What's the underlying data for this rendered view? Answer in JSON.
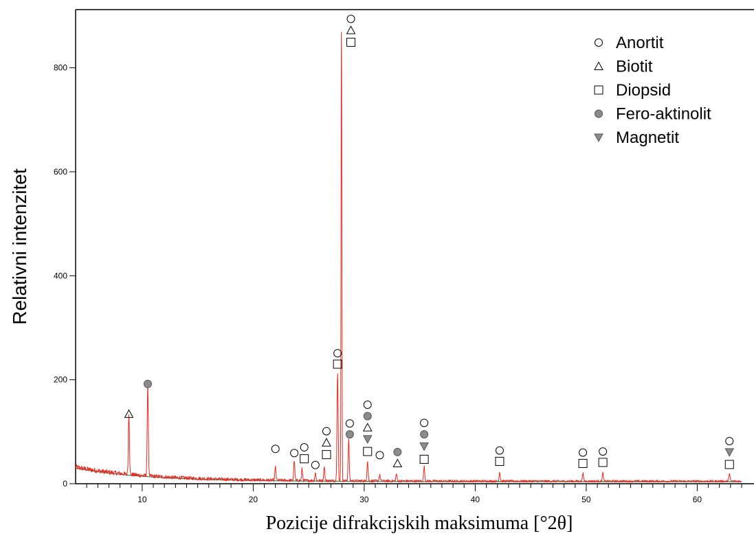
{
  "chart_data": {
    "type": "line",
    "xlabel": "Pozicije difrakcijskih maksimuma [°2θ]",
    "ylabel": "Relativni intenzitet",
    "xlim": [
      4,
      64
    ],
    "ylim": [
      0,
      900
    ],
    "x_ticks": [
      10,
      20,
      30,
      40,
      50,
      60
    ],
    "y_ticks": [
      0,
      200,
      400,
      600,
      800
    ],
    "x_tick_labels": [
      "10",
      "20",
      "30",
      "40",
      "50",
      "60"
    ],
    "y_tick_labels": [
      "0",
      "200",
      "400",
      "600",
      "800"
    ],
    "grid": false,
    "legend_position": "top-right",
    "colors": {
      "pattern": "#e8281e",
      "background": "#2e7d5b",
      "filled_marker": "#8c8c8c"
    },
    "legend": [
      {
        "name": "Anortit",
        "marker": "circle-open"
      },
      {
        "name": "Biotit",
        "marker": "triangle-open"
      },
      {
        "name": "Diopsid",
        "marker": "square-open"
      },
      {
        "name": "Fero-aktinolit",
        "marker": "circle-filled"
      },
      {
        "name": "Magnetit",
        "marker": "triangle-down-filled"
      }
    ],
    "peaks": [
      {
        "x": 8.8,
        "y": 118
      },
      {
        "x": 10.5,
        "y": 178
      },
      {
        "x": 22.0,
        "y": 25
      },
      {
        "x": 23.7,
        "y": 38
      },
      {
        "x": 24.4,
        "y": 22
      },
      {
        "x": 25.6,
        "y": 15
      },
      {
        "x": 26.4,
        "y": 28
      },
      {
        "x": 27.6,
        "y": 210
      },
      {
        "x": 27.95,
        "y": 900
      },
      {
        "x": 28.6,
        "y": 80
      },
      {
        "x": 30.3,
        "y": 38
      },
      {
        "x": 31.4,
        "y": 12
      },
      {
        "x": 32.9,
        "y": 14
      },
      {
        "x": 35.4,
        "y": 28
      },
      {
        "x": 42.2,
        "y": 18
      },
      {
        "x": 49.7,
        "y": 16
      },
      {
        "x": 51.5,
        "y": 16
      },
      {
        "x": 62.9,
        "y": 16
      }
    ],
    "markers": [
      {
        "phase": "Biotit",
        "x": 8.8,
        "y": 134
      },
      {
        "phase": "Fero-aktinolit",
        "x": 10.5,
        "y": 192
      },
      {
        "phase": "Anortit",
        "x": 22.0,
        "y": 67
      },
      {
        "phase": "Anortit",
        "x": 23.7,
        "y": 59
      },
      {
        "phase": "Anortit",
        "x": 24.6,
        "y": 70
      },
      {
        "phase": "Diopsid",
        "x": 24.6,
        "y": 48
      },
      {
        "phase": "Anortit",
        "x": 25.6,
        "y": 36
      },
      {
        "phase": "Anortit",
        "x": 26.6,
        "y": 101
      },
      {
        "phase": "Biotit",
        "x": 26.6,
        "y": 79
      },
      {
        "phase": "Diopsid",
        "x": 26.6,
        "y": 56
      },
      {
        "phase": "Anortit",
        "x": 27.6,
        "y": 251
      },
      {
        "phase": "Diopsid",
        "x": 27.6,
        "y": 230
      },
      {
        "phase": "Anortit",
        "x": 28.8,
        "y": 894
      },
      {
        "phase": "Biotit",
        "x": 28.8,
        "y": 872
      },
      {
        "phase": "Diopsid",
        "x": 28.8,
        "y": 849
      },
      {
        "phase": "Anortit",
        "x": 28.7,
        "y": 116
      },
      {
        "phase": "Fero-aktinolit",
        "x": 28.7,
        "y": 95
      },
      {
        "phase": "Anortit",
        "x": 30.3,
        "y": 152
      },
      {
        "phase": "Fero-aktinolit",
        "x": 30.3,
        "y": 130
      },
      {
        "phase": "Biotit",
        "x": 30.3,
        "y": 108
      },
      {
        "phase": "Magnetit",
        "x": 30.3,
        "y": 86
      },
      {
        "phase": "Diopsid",
        "x": 30.3,
        "y": 62
      },
      {
        "phase": "Anortit",
        "x": 31.4,
        "y": 55
      },
      {
        "phase": "Fero-aktinolit",
        "x": 33.0,
        "y": 61
      },
      {
        "phase": "Biotit",
        "x": 33.0,
        "y": 39
      },
      {
        "phase": "Anortit",
        "x": 35.4,
        "y": 117
      },
      {
        "phase": "Fero-aktinolit",
        "x": 35.4,
        "y": 95
      },
      {
        "phase": "Magnetit",
        "x": 35.4,
        "y": 72
      },
      {
        "phase": "Diopsid",
        "x": 35.4,
        "y": 47
      },
      {
        "phase": "Anortit",
        "x": 42.2,
        "y": 64
      },
      {
        "phase": "Diopsid",
        "x": 42.2,
        "y": 43
      },
      {
        "phase": "Anortit",
        "x": 49.7,
        "y": 60
      },
      {
        "phase": "Diopsid",
        "x": 49.7,
        "y": 39
      },
      {
        "phase": "Anortit",
        "x": 51.5,
        "y": 62
      },
      {
        "phase": "Diopsid",
        "x": 51.5,
        "y": 41
      },
      {
        "phase": "Anortit",
        "x": 62.9,
        "y": 82
      },
      {
        "phase": "Magnetit",
        "x": 62.9,
        "y": 61
      },
      {
        "phase": "Diopsid",
        "x": 62.9,
        "y": 37
      }
    ]
  }
}
